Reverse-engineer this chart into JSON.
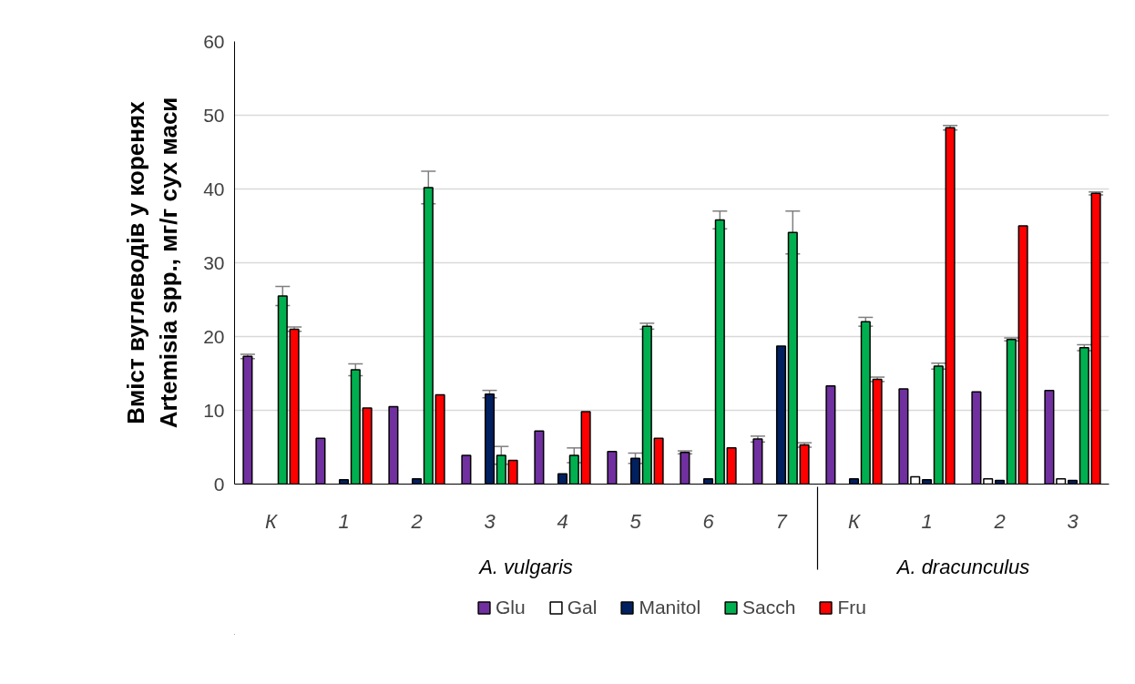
{
  "chart_data": {
    "type": "bar",
    "ylabel": "Вміст вуглеводів у коренях\nArtemisia spp., мг/г сух маси",
    "categories": [
      "К",
      "1",
      "2",
      "3",
      "4",
      "5",
      "6",
      "7",
      "К",
      "1",
      "2",
      "3"
    ],
    "annotations": [
      "A. vulgaris",
      "A. dracunculus"
    ],
    "series": [
      {
        "name": "Glu",
        "color": "#7030a0",
        "values": [
          17.3,
          6.2,
          10.5,
          3.9,
          7.2,
          4.4,
          4.3,
          6.1,
          13.3,
          12.9,
          12.5,
          12.7
        ],
        "errors": [
          0.3,
          null,
          null,
          null,
          null,
          null,
          0.2,
          0.4,
          null,
          null,
          null,
          null
        ]
      },
      {
        "name": "Gal",
        "color": "#ffffff",
        "values": [
          null,
          null,
          null,
          null,
          null,
          null,
          null,
          null,
          null,
          1.0,
          0.7,
          0.7
        ]
      },
      {
        "name": "Manitol",
        "color": "#002060",
        "values": [
          null,
          0.6,
          0.7,
          12.2,
          1.4,
          3.5,
          0.7,
          18.7,
          0.7,
          0.6,
          0.5,
          0.5
        ],
        "errors": [
          null,
          null,
          null,
          0.5,
          null,
          0.7,
          null,
          null,
          null,
          null,
          null,
          null
        ]
      },
      {
        "name": "Sacch",
        "color": "#00b050",
        "values": [
          25.5,
          15.5,
          40.2,
          3.9,
          3.9,
          21.4,
          35.8,
          34.1,
          22.0,
          16.0,
          19.6,
          18.5
        ],
        "errors": [
          1.3,
          0.8,
          2.2,
          1.2,
          1.0,
          0.4,
          1.2,
          2.9,
          0.6,
          0.4,
          0.2,
          0.4
        ]
      },
      {
        "name": "Fru",
        "color": "#ff0000",
        "values": [
          21.0,
          10.3,
          12.1,
          3.2,
          9.8,
          6.2,
          4.9,
          5.3,
          14.2,
          48.3,
          35.0,
          39.4
        ],
        "errors": [
          0.3,
          null,
          null,
          null,
          null,
          null,
          null,
          0.3,
          0.3,
          0.3,
          null,
          0.2
        ]
      }
    ],
    "ylim": [
      0,
      60
    ],
    "yticks": [
      0,
      10,
      20,
      30,
      40,
      50,
      60
    ],
    "grid": "y",
    "legend": "bottom"
  }
}
